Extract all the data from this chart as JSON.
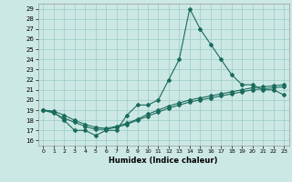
{
  "title": "",
  "xlabel": "Humidex (Indice chaleur)",
  "xlim": [
    -0.5,
    23.5
  ],
  "ylim": [
    15.5,
    29.5
  ],
  "xticks": [
    0,
    1,
    2,
    3,
    4,
    5,
    6,
    7,
    8,
    9,
    10,
    11,
    12,
    13,
    14,
    15,
    16,
    17,
    18,
    19,
    20,
    21,
    22,
    23
  ],
  "yticks": [
    16,
    17,
    18,
    19,
    20,
    21,
    22,
    23,
    24,
    25,
    26,
    27,
    28,
    29
  ],
  "line_color": "#1a6b5e",
  "bg_color": "#cce8e4",
  "grid_color": "#99ccc7",
  "series1_x": [
    0,
    1,
    2,
    3,
    4,
    5,
    6,
    7,
    8,
    9,
    10,
    11,
    12,
    13,
    14,
    15,
    16,
    17,
    18,
    19,
    20,
    21,
    22,
    23
  ],
  "series1_y": [
    19,
    18.8,
    18,
    17,
    17,
    16.5,
    17,
    17,
    18.5,
    19.5,
    19.5,
    20,
    22,
    24,
    29,
    27,
    25.5,
    24,
    22.5,
    21.5,
    21.5,
    21,
    21,
    20.5
  ],
  "series2_x": [
    0,
    1,
    2,
    3,
    4,
    5,
    6,
    7,
    8,
    9,
    10,
    11,
    12,
    13,
    14,
    15,
    16,
    17,
    18,
    19,
    20,
    21,
    22,
    23
  ],
  "series2_y": [
    19,
    18.7,
    18.2,
    17.8,
    17.4,
    17.1,
    17.1,
    17.3,
    17.6,
    18.0,
    18.4,
    18.8,
    19.2,
    19.5,
    19.8,
    20.0,
    20.2,
    20.4,
    20.6,
    20.8,
    21.0,
    21.1,
    21.2,
    21.3
  ],
  "series3_x": [
    0,
    1,
    2,
    3,
    4,
    5,
    6,
    7,
    8,
    9,
    10,
    11,
    12,
    13,
    14,
    15,
    16,
    17,
    18,
    19,
    20,
    21,
    22,
    23
  ],
  "series3_y": [
    19,
    18.9,
    18.5,
    18.0,
    17.6,
    17.3,
    17.2,
    17.4,
    17.7,
    18.1,
    18.6,
    19.0,
    19.4,
    19.7,
    20.0,
    20.2,
    20.4,
    20.6,
    20.8,
    21.0,
    21.2,
    21.3,
    21.4,
    21.5
  ]
}
